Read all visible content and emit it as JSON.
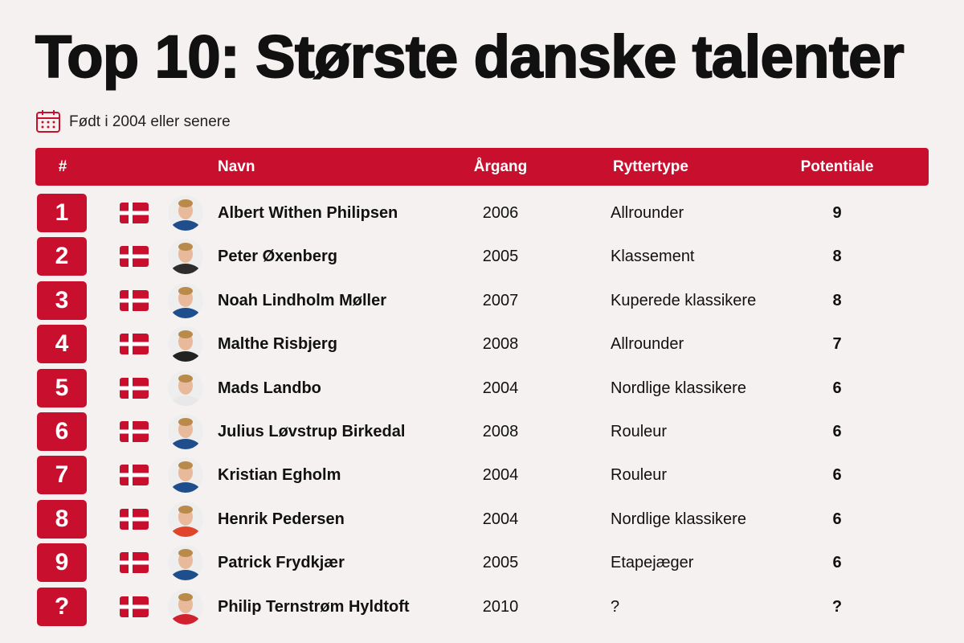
{
  "header": {
    "title": "Top 10: Største danske talenter",
    "subtitle": "Født i 2004 eller senere"
  },
  "table": {
    "columns": [
      "#",
      "Navn",
      "Årgang",
      "Ryttertype",
      "Potentiale"
    ],
    "rows": [
      [
        "1",
        "Albert Withen Philipsen",
        "2006",
        "Allrounder",
        "9"
      ],
      [
        "2",
        "Peter Øxenberg",
        "2005",
        "Klassement",
        "8"
      ],
      [
        "3",
        "Noah Lindholm Møller",
        "2007",
        "Kuperede klassikere",
        "8"
      ],
      [
        "4",
        "Malthe Risbjerg",
        "2008",
        "Allrounder",
        "7"
      ],
      [
        "5",
        "Mads Landbo",
        "2004",
        "Nordlige klassikere",
        "6"
      ],
      [
        "6",
        "Julius Løvstrup Birkedal",
        "2008",
        "Rouleur",
        "6"
      ],
      [
        "7",
        "Kristian Egholm",
        "2004",
        "Rouleur",
        "6"
      ],
      [
        "8",
        "Henrik Pedersen",
        "2004",
        "Nordlige klassikere",
        "6"
      ],
      [
        "9",
        "Patrick Frydkjær",
        "2005",
        "Etapejæger",
        "6"
      ],
      [
        "?",
        "Philip Ternstrøm Hyldtoft",
        "2010",
        "?",
        "?"
      ]
    ]
  }
}
